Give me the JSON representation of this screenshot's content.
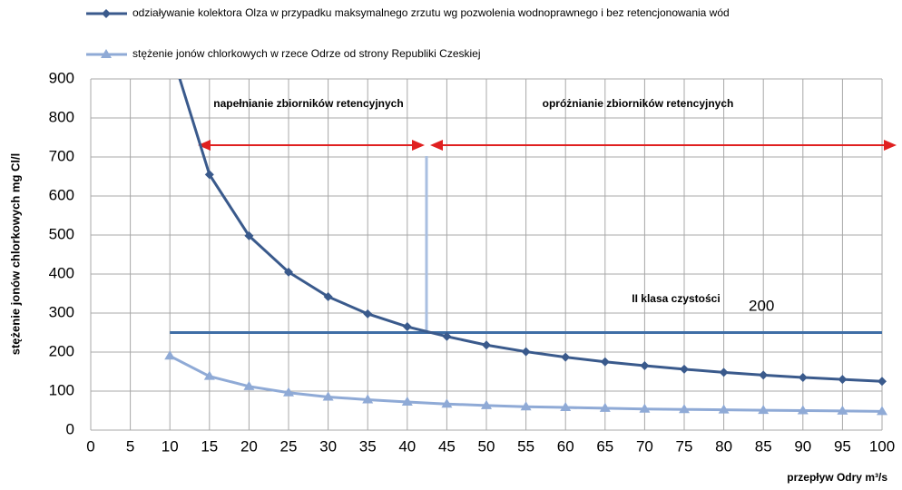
{
  "chart_data": {
    "type": "line",
    "x_label": "przepływ Odry m³/s",
    "y_label": "stężenie jonów chlorkowych mg Cl/l",
    "x": [
      10,
      15,
      20,
      25,
      30,
      35,
      40,
      45,
      50,
      55,
      60,
      65,
      70,
      75,
      80,
      85,
      90,
      95,
      100
    ],
    "series": [
      {
        "name": "odziaływanie kolektora Olza w przypadku maksymalnego zrzutu wg pozwolenia wodnoprawnego i bez retencjonowania wód",
        "color": "#3a5a8c",
        "marker": "diamond",
        "values": [
          982,
          655,
          498,
          405,
          342,
          298,
          265,
          240,
          218,
          201,
          187,
          175,
          165,
          156,
          148,
          141,
          135,
          130,
          125
        ]
      },
      {
        "name": "stężenie jonów chlorkowych  w rzece Odrze  od strony Republiki Czeskiej",
        "color": "#8faad6",
        "marker": "triangle",
        "values": [
          190,
          138,
          112,
          96,
          85,
          78,
          72,
          67,
          63,
          60,
          58,
          56,
          54,
          53,
          52,
          51,
          50,
          49,
          48
        ]
      }
    ],
    "xlim": [
      0,
      100
    ],
    "ylim": [
      0,
      900
    ],
    "xticks": [
      0,
      5,
      10,
      15,
      20,
      25,
      30,
      35,
      40,
      45,
      50,
      55,
      60,
      65,
      70,
      75,
      80,
      85,
      90,
      95,
      100
    ],
    "yticks": [
      0,
      100,
      200,
      300,
      400,
      500,
      600,
      700,
      800,
      900
    ],
    "grid": true,
    "threshold": {
      "label": "II klasa czystości",
      "value": 250,
      "color": "#3f6ea6"
    },
    "annotations": [
      "napełnianie zbiorników retencyjnych",
      "opróżnianie  zbiorników retencyjnych",
      "200"
    ]
  }
}
